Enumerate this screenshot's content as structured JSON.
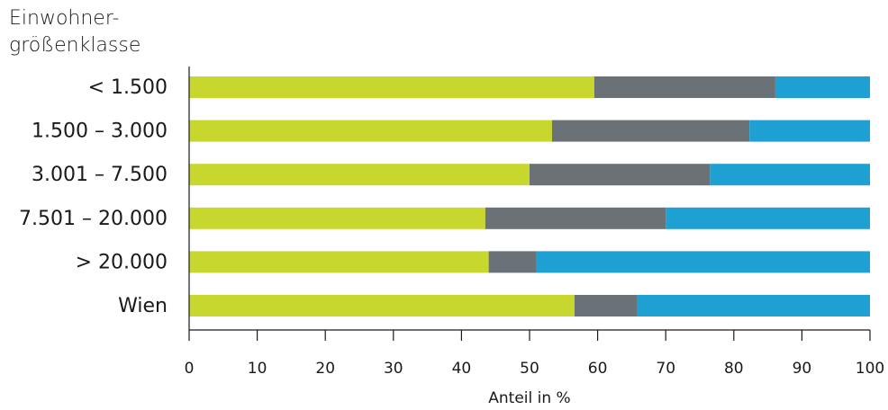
{
  "chart_data": {
    "type": "bar",
    "orientation": "horizontal",
    "stacked": true,
    "ylabel_lines": [
      "Einwohner-",
      "größenklasse"
    ],
    "xlabel": "Anteil in %",
    "categories": [
      "< 1.500",
      "1.500 – 3.000",
      "3.001 – 7.500",
      "7.501 – 20.000",
      "> 20.000",
      "Wien"
    ],
    "series": [
      {
        "color": "#c8d72d",
        "values": [
          59.5,
          53.3,
          50.0,
          43.5,
          44.0,
          56.6
        ]
      },
      {
        "color": "#6a7177",
        "values": [
          26.6,
          29.0,
          26.5,
          26.5,
          7.0,
          9.2
        ]
      },
      {
        "color": "#1ea0d2",
        "values": [
          13.9,
          17.7,
          23.5,
          30.0,
          49.0,
          34.2
        ]
      }
    ],
    "xlim": [
      0,
      100
    ],
    "xticks": [
      0,
      10,
      20,
      30,
      40,
      50,
      60,
      70,
      80,
      90,
      100
    ],
    "grid": false,
    "legend": "none"
  }
}
